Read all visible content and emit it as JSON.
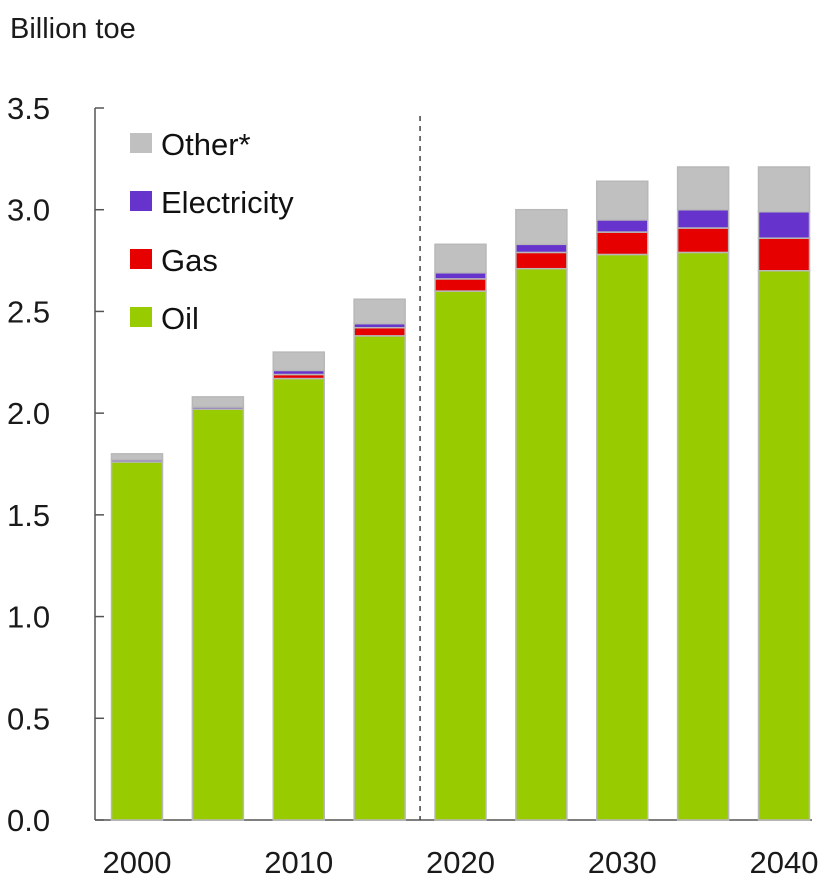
{
  "chart_data": {
    "type": "bar",
    "stacked": true,
    "ylabel": "Billion toe",
    "ylim": [
      0,
      3.5
    ],
    "yticks": [
      "0.0",
      "0.5",
      "1.0",
      "1.5",
      "2.0",
      "2.5",
      "3.0",
      "3.5"
    ],
    "ytick_values": [
      0,
      0.5,
      1.0,
      1.5,
      2.0,
      2.5,
      3.0,
      3.5
    ],
    "categories": [
      "2000",
      "2005",
      "2010",
      "2015",
      "2020",
      "2025",
      "2030",
      "2035",
      "2040"
    ],
    "xtick_labels": [
      "2000",
      "2010",
      "2020",
      "2030",
      "2040"
    ],
    "projection_divider_after": "2015",
    "legend_position": "top-left",
    "grid": false,
    "series": [
      {
        "name": "Oil",
        "color": "#99cc00",
        "values": [
          1.76,
          2.02,
          2.17,
          2.38,
          2.6,
          2.71,
          2.78,
          2.79,
          2.7
        ]
      },
      {
        "name": "Gas",
        "color": "#e60000",
        "values": [
          0.0,
          0.0,
          0.02,
          0.04,
          0.06,
          0.08,
          0.11,
          0.12,
          0.16
        ]
      },
      {
        "name": "Electricity",
        "color": "#6633cc",
        "values": [
          0.01,
          0.01,
          0.02,
          0.02,
          0.03,
          0.04,
          0.06,
          0.09,
          0.13
        ]
      },
      {
        "name": "Other*",
        "color": "#c0c0c0",
        "values": [
          0.03,
          0.05,
          0.09,
          0.12,
          0.14,
          0.17,
          0.19,
          0.21,
          0.22
        ]
      }
    ]
  }
}
